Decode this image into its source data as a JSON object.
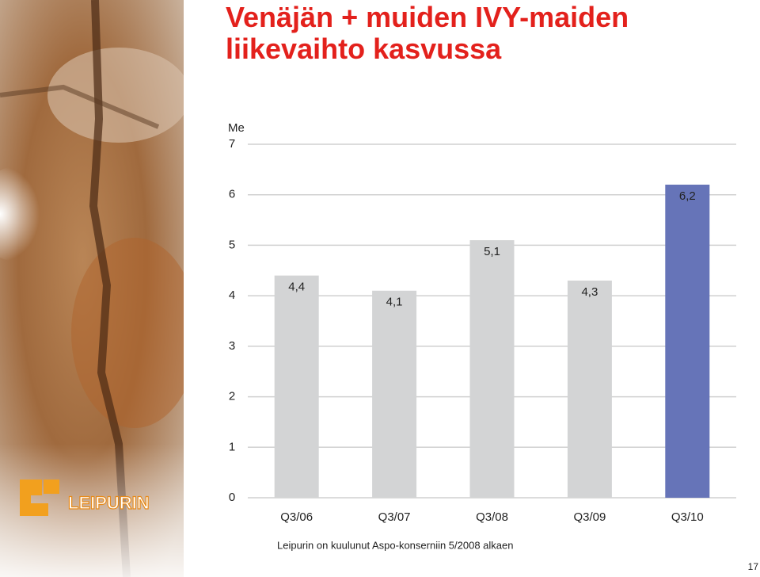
{
  "chart_data": {
    "type": "bar",
    "title": "Venäjän + muiden IVY-maiden liikevaihto kasvussa",
    "y_label": "Me",
    "categories": [
      "Q3/06",
      "Q3/07",
      "Q3/08",
      "Q3/09",
      "Q3/10"
    ],
    "values": [
      4.4,
      4.1,
      5.1,
      4.3,
      6.2
    ],
    "value_labels": [
      "4,4",
      "4,1",
      "5,1",
      "4,3",
      "6,2"
    ],
    "colors": [
      "#d3d4d5",
      "#d3d4d5",
      "#d3d4d5",
      "#d3d4d5",
      "#6674b8"
    ],
    "ylim": [
      0,
      7
    ],
    "yticks": [
      0,
      1,
      2,
      3,
      4,
      5,
      6,
      7
    ],
    "grid": true
  },
  "logo": "LEIPURIN",
  "footnote": "Leipurin on kuulunut Aspo-konserniin 5/2008 alkaen",
  "page_number": "17"
}
